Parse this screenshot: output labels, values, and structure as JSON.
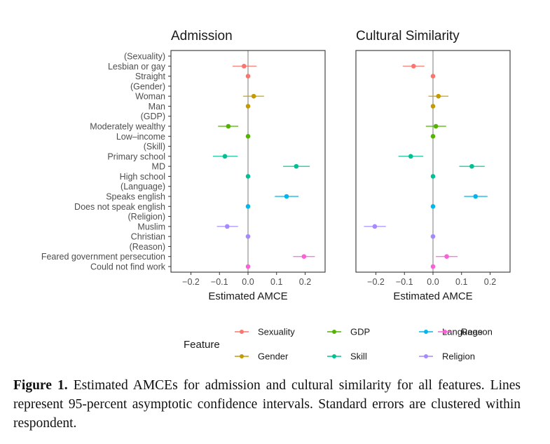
{
  "chart_data": {
    "type": "scatter",
    "subtype": "coefficient-plot-with-confidence-intervals",
    "xlabel": "Estimated AMCE",
    "xlim": [
      -0.27,
      0.27
    ],
    "xticks": [
      -0.2,
      -0.1,
      0.0,
      0.1,
      0.2
    ],
    "xtick_labels": [
      "−0.2",
      "−0.1",
      "0.0",
      "0.1",
      "0.2"
    ],
    "reference_line": 0.0,
    "grid": false,
    "legend_title": "Feature",
    "legend_position": "bottom",
    "legend": [
      {
        "name": "Sexuality",
        "color": "#F8766D"
      },
      {
        "name": "GDP",
        "color": "#53B400"
      },
      {
        "name": "Language",
        "color": "#00B6EB"
      },
      {
        "name": "Reason",
        "color": "#FB61D7"
      },
      {
        "name": "Gender",
        "color": "#C49A00"
      },
      {
        "name": "Skill",
        "color": "#00C094"
      },
      {
        "name": "Religion",
        "color": "#A58AFF"
      }
    ],
    "rows": [
      {
        "label": "(Sexuality)",
        "feature": null
      },
      {
        "label": "Lesbian or gay",
        "feature": "Sexuality"
      },
      {
        "label": "Straight",
        "feature": "Sexuality"
      },
      {
        "label": "(Gender)",
        "feature": null
      },
      {
        "label": "Woman",
        "feature": "Gender"
      },
      {
        "label": "Man",
        "feature": "Gender"
      },
      {
        "label": "(GDP)",
        "feature": null
      },
      {
        "label": "Moderately wealthy",
        "feature": "GDP"
      },
      {
        "label": "Low–income",
        "feature": "GDP"
      },
      {
        "label": "(Skill)",
        "feature": null
      },
      {
        "label": "Primary school",
        "feature": "Skill"
      },
      {
        "label": "MD",
        "feature": "Skill"
      },
      {
        "label": "High school",
        "feature": "Skill"
      },
      {
        "label": "(Language)",
        "feature": null
      },
      {
        "label": "Speaks english",
        "feature": "Language"
      },
      {
        "label": "Does not speak english",
        "feature": "Language"
      },
      {
        "label": "(Religion)",
        "feature": null
      },
      {
        "label": "Muslim",
        "feature": "Religion"
      },
      {
        "label": "Christian",
        "feature": "Religion"
      },
      {
        "label": "(Reason)",
        "feature": null
      },
      {
        "label": "Feared government persecution",
        "feature": "Reason"
      },
      {
        "label": "Could not find work",
        "feature": "Reason"
      }
    ],
    "panels": [
      {
        "title": "Admission",
        "estimates": [
          {
            "label": "Lesbian or gay",
            "estimate": -0.014,
            "lower": -0.054,
            "upper": 0.03
          },
          {
            "label": "Straight",
            "estimate": 0.0,
            "lower": 0.0,
            "upper": 0.0
          },
          {
            "label": "Woman",
            "estimate": 0.02,
            "lower": -0.017,
            "upper": 0.056
          },
          {
            "label": "Man",
            "estimate": 0.0,
            "lower": 0.0,
            "upper": 0.0
          },
          {
            "label": "Moderately wealthy",
            "estimate": -0.069,
            "lower": -0.105,
            "upper": -0.034
          },
          {
            "label": "Low–income",
            "estimate": 0.0,
            "lower": 0.0,
            "upper": 0.0
          },
          {
            "label": "Primary school",
            "estimate": -0.081,
            "lower": -0.123,
            "upper": -0.036
          },
          {
            "label": "MD",
            "estimate": 0.169,
            "lower": 0.123,
            "upper": 0.216
          },
          {
            "label": "High school",
            "estimate": 0.0,
            "lower": 0.0,
            "upper": 0.0
          },
          {
            "label": "Speaks english",
            "estimate": 0.135,
            "lower": 0.094,
            "upper": 0.177
          },
          {
            "label": "Does not speak english",
            "estimate": 0.0,
            "lower": 0.0,
            "upper": 0.0
          },
          {
            "label": "Muslim",
            "estimate": -0.073,
            "lower": -0.109,
            "upper": -0.035
          },
          {
            "label": "Christian",
            "estimate": 0.0,
            "lower": 0.0,
            "upper": 0.0
          },
          {
            "label": "Feared government persecution",
            "estimate": 0.196,
            "lower": 0.158,
            "upper": 0.234
          },
          {
            "label": "Could not find work",
            "estimate": 0.0,
            "lower": 0.0,
            "upper": 0.0
          }
        ]
      },
      {
        "title": "Cultural Similarity",
        "estimates": [
          {
            "label": "Lesbian or gay",
            "estimate": -0.068,
            "lower": -0.106,
            "upper": -0.03
          },
          {
            "label": "Straight",
            "estimate": 0.0,
            "lower": 0.0,
            "upper": 0.0
          },
          {
            "label": "Woman",
            "estimate": 0.019,
            "lower": -0.016,
            "upper": 0.054
          },
          {
            "label": "Man",
            "estimate": 0.0,
            "lower": 0.0,
            "upper": 0.0
          },
          {
            "label": "Moderately wealthy",
            "estimate": 0.01,
            "lower": -0.025,
            "upper": 0.046
          },
          {
            "label": "Low–income",
            "estimate": 0.0,
            "lower": 0.0,
            "upper": 0.0
          },
          {
            "label": "Primary school",
            "estimate": -0.078,
            "lower": -0.121,
            "upper": -0.034
          },
          {
            "label": "MD",
            "estimate": 0.136,
            "lower": 0.092,
            "upper": 0.181
          },
          {
            "label": "High school",
            "estimate": 0.0,
            "lower": 0.0,
            "upper": 0.0
          },
          {
            "label": "Speaks english",
            "estimate": 0.149,
            "lower": 0.109,
            "upper": 0.191
          },
          {
            "label": "Does not speak english",
            "estimate": 0.0,
            "lower": 0.0,
            "upper": 0.0
          },
          {
            "label": "Muslim",
            "estimate": -0.204,
            "lower": -0.242,
            "upper": -0.165
          },
          {
            "label": "Christian",
            "estimate": 0.0,
            "lower": 0.0,
            "upper": 0.0
          },
          {
            "label": "Feared government persecution",
            "estimate": 0.048,
            "lower": 0.01,
            "upper": 0.086
          },
          {
            "label": "Could not find work",
            "estimate": 0.0,
            "lower": 0.0,
            "upper": 0.0
          }
        ]
      }
    ]
  },
  "caption": {
    "label": "Figure 1.",
    "text": " Estimated AMCEs for admission and cultural similarity for all features. Lines represent 95-percent asymptotic confidence intervals. Standard errors are clustered within respondent."
  }
}
